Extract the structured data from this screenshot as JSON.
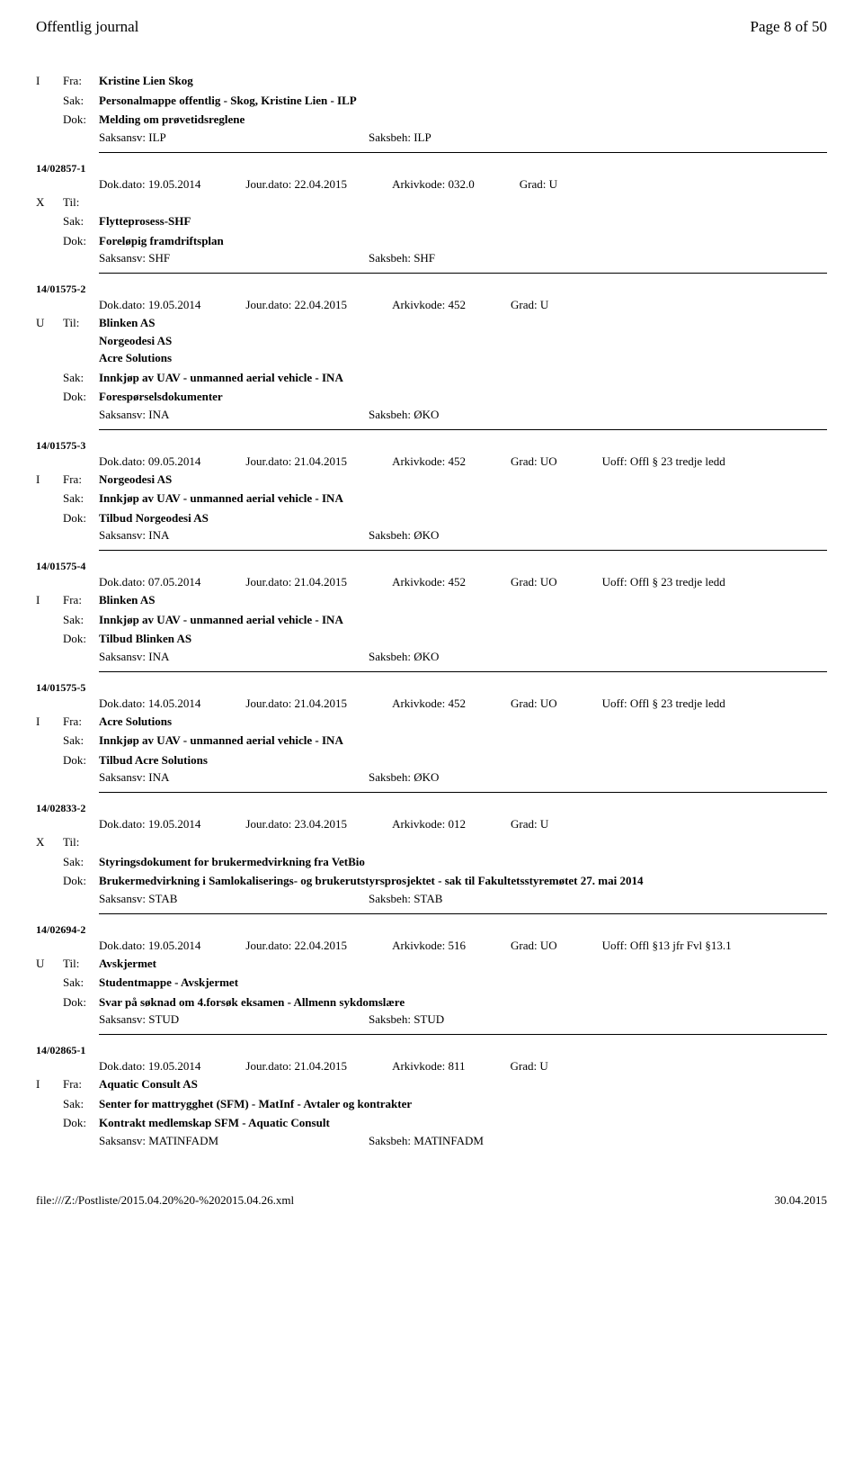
{
  "header": {
    "title": "Offentlig journal",
    "page": "Page 8 of 50"
  },
  "entries": [
    {
      "type": "I",
      "fra_label": "Fra:",
      "fra_value": "Kristine Lien Skog",
      "sak_label": "Sak:",
      "sak_value": "Personalmappe offentlig - Skog, Kristine Lien - ILP",
      "dok_label": "Dok:",
      "dok_value": "Melding om prøvetidsreglene",
      "saksansv": "Saksansv: ILP",
      "saksbeh": "Saksbeh: ILP"
    },
    {
      "case_number": "14/02857-1",
      "dokdato": "Dok.dato: 19.05.2014",
      "jourdato": "Jour.dato: 22.04.2015",
      "arkivkode": "Arkivkode: 032.0",
      "grad": "Grad: U",
      "type": "X",
      "til_label": "Til:",
      "til_value": "",
      "sak_label": "Sak:",
      "sak_value": "Flytteprosess-SHF",
      "dok_label": "Dok:",
      "dok_value": "Foreløpig framdriftsplan",
      "saksansv": "Saksansv: SHF",
      "saksbeh": "Saksbeh: SHF"
    },
    {
      "case_number": "14/01575-2",
      "dokdato": "Dok.dato: 19.05.2014",
      "jourdato": "Jour.dato: 22.04.2015",
      "arkivkode": "Arkivkode: 452",
      "grad": "Grad: U",
      "type": "U",
      "til_label": "Til:",
      "til_values": [
        "Blinken AS",
        "Norgeodesi AS",
        "Acre Solutions"
      ],
      "sak_label": "Sak:",
      "sak_value": "Innkjøp av UAV - unmanned aerial vehicle - INA",
      "dok_label": "Dok:",
      "dok_value": "Forespørselsdokumenter",
      "saksansv": "Saksansv: INA",
      "saksbeh": "Saksbeh: ØKO"
    },
    {
      "case_number": "14/01575-3",
      "dokdato": "Dok.dato: 09.05.2014",
      "jourdato": "Jour.dato: 21.04.2015",
      "arkivkode": "Arkivkode: 452",
      "grad": "Grad: UO",
      "uoff": "Uoff: Offl § 23 tredje ledd",
      "type": "I",
      "fra_label": "Fra:",
      "fra_value": "Norgeodesi AS",
      "sak_label": "Sak:",
      "sak_value": "Innkjøp av UAV - unmanned aerial vehicle - INA",
      "dok_label": "Dok:",
      "dok_value": "Tilbud Norgeodesi AS",
      "saksansv": "Saksansv: INA",
      "saksbeh": "Saksbeh: ØKO"
    },
    {
      "case_number": "14/01575-4",
      "dokdato": "Dok.dato: 07.05.2014",
      "jourdato": "Jour.dato: 21.04.2015",
      "arkivkode": "Arkivkode: 452",
      "grad": "Grad: UO",
      "uoff": "Uoff: Offl § 23 tredje ledd",
      "type": "I",
      "fra_label": "Fra:",
      "fra_value": "Blinken AS",
      "sak_label": "Sak:",
      "sak_value": "Innkjøp av UAV - unmanned aerial vehicle - INA",
      "dok_label": "Dok:",
      "dok_value": "Tilbud Blinken AS",
      "saksansv": "Saksansv: INA",
      "saksbeh": "Saksbeh: ØKO"
    },
    {
      "case_number": "14/01575-5",
      "dokdato": "Dok.dato: 14.05.2014",
      "jourdato": "Jour.dato: 21.04.2015",
      "arkivkode": "Arkivkode: 452",
      "grad": "Grad: UO",
      "uoff": "Uoff: Offl § 23 tredje ledd",
      "type": "I",
      "fra_label": "Fra:",
      "fra_value": "Acre Solutions",
      "sak_label": "Sak:",
      "sak_value": "Innkjøp av UAV - unmanned aerial vehicle - INA",
      "dok_label": "Dok:",
      "dok_value": "Tilbud Acre Solutions",
      "saksansv": "Saksansv: INA",
      "saksbeh": "Saksbeh: ØKO"
    },
    {
      "case_number": "14/02833-2",
      "dokdato": "Dok.dato: 19.05.2014",
      "jourdato": "Jour.dato: 23.04.2015",
      "arkivkode": "Arkivkode: 012",
      "grad": "Grad: U",
      "type": "X",
      "til_label": "Til:",
      "til_value": "",
      "sak_label": "Sak:",
      "sak_value": "Styringsdokument for brukermedvirkning fra VetBio",
      "dok_label": "Dok:",
      "dok_value": "Brukermedvirkning i Samlokaliserings- og brukerutstyrsprosjektet - sak til Fakultetsstyremøtet 27. mai 2014",
      "saksansv": "Saksansv: STAB",
      "saksbeh": "Saksbeh: STAB"
    },
    {
      "case_number": "14/02694-2",
      "dokdato": "Dok.dato: 19.05.2014",
      "jourdato": "Jour.dato: 22.04.2015",
      "arkivkode": "Arkivkode: 516",
      "grad": "Grad: UO",
      "uoff": "Uoff: Offl §13 jfr Fvl §13.1",
      "type": "U",
      "til_label": "Til:",
      "til_value": "Avskjermet",
      "sak_label": "Sak:",
      "sak_value": "Studentmappe - Avskjermet",
      "dok_label": "Dok:",
      "dok_value": "Svar på søknad om 4.forsøk eksamen - Allmenn sykdomslære",
      "saksansv": "Saksansv: STUD",
      "saksbeh": "Saksbeh: STUD"
    },
    {
      "case_number": "14/02865-1",
      "dokdato": "Dok.dato: 19.05.2014",
      "jourdato": "Jour.dato: 21.04.2015",
      "arkivkode": "Arkivkode: 811",
      "grad": "Grad: U",
      "type": "I",
      "fra_label": "Fra:",
      "fra_value": "Aquatic Consult AS",
      "sak_label": "Sak:",
      "sak_value": "Senter for mattrygghet (SFM) - MatInf - Avtaler og kontrakter",
      "dok_label": "Dok:",
      "dok_value": "Kontrakt medlemskap SFM - Aquatic Consult",
      "saksansv": "Saksansv: MATINFADM",
      "saksbeh": "Saksbeh: MATINFADM"
    }
  ],
  "footer": {
    "path": "file:///Z:/Postliste/2015.04.20%20-%202015.04.26.xml",
    "date": "30.04.2015"
  }
}
